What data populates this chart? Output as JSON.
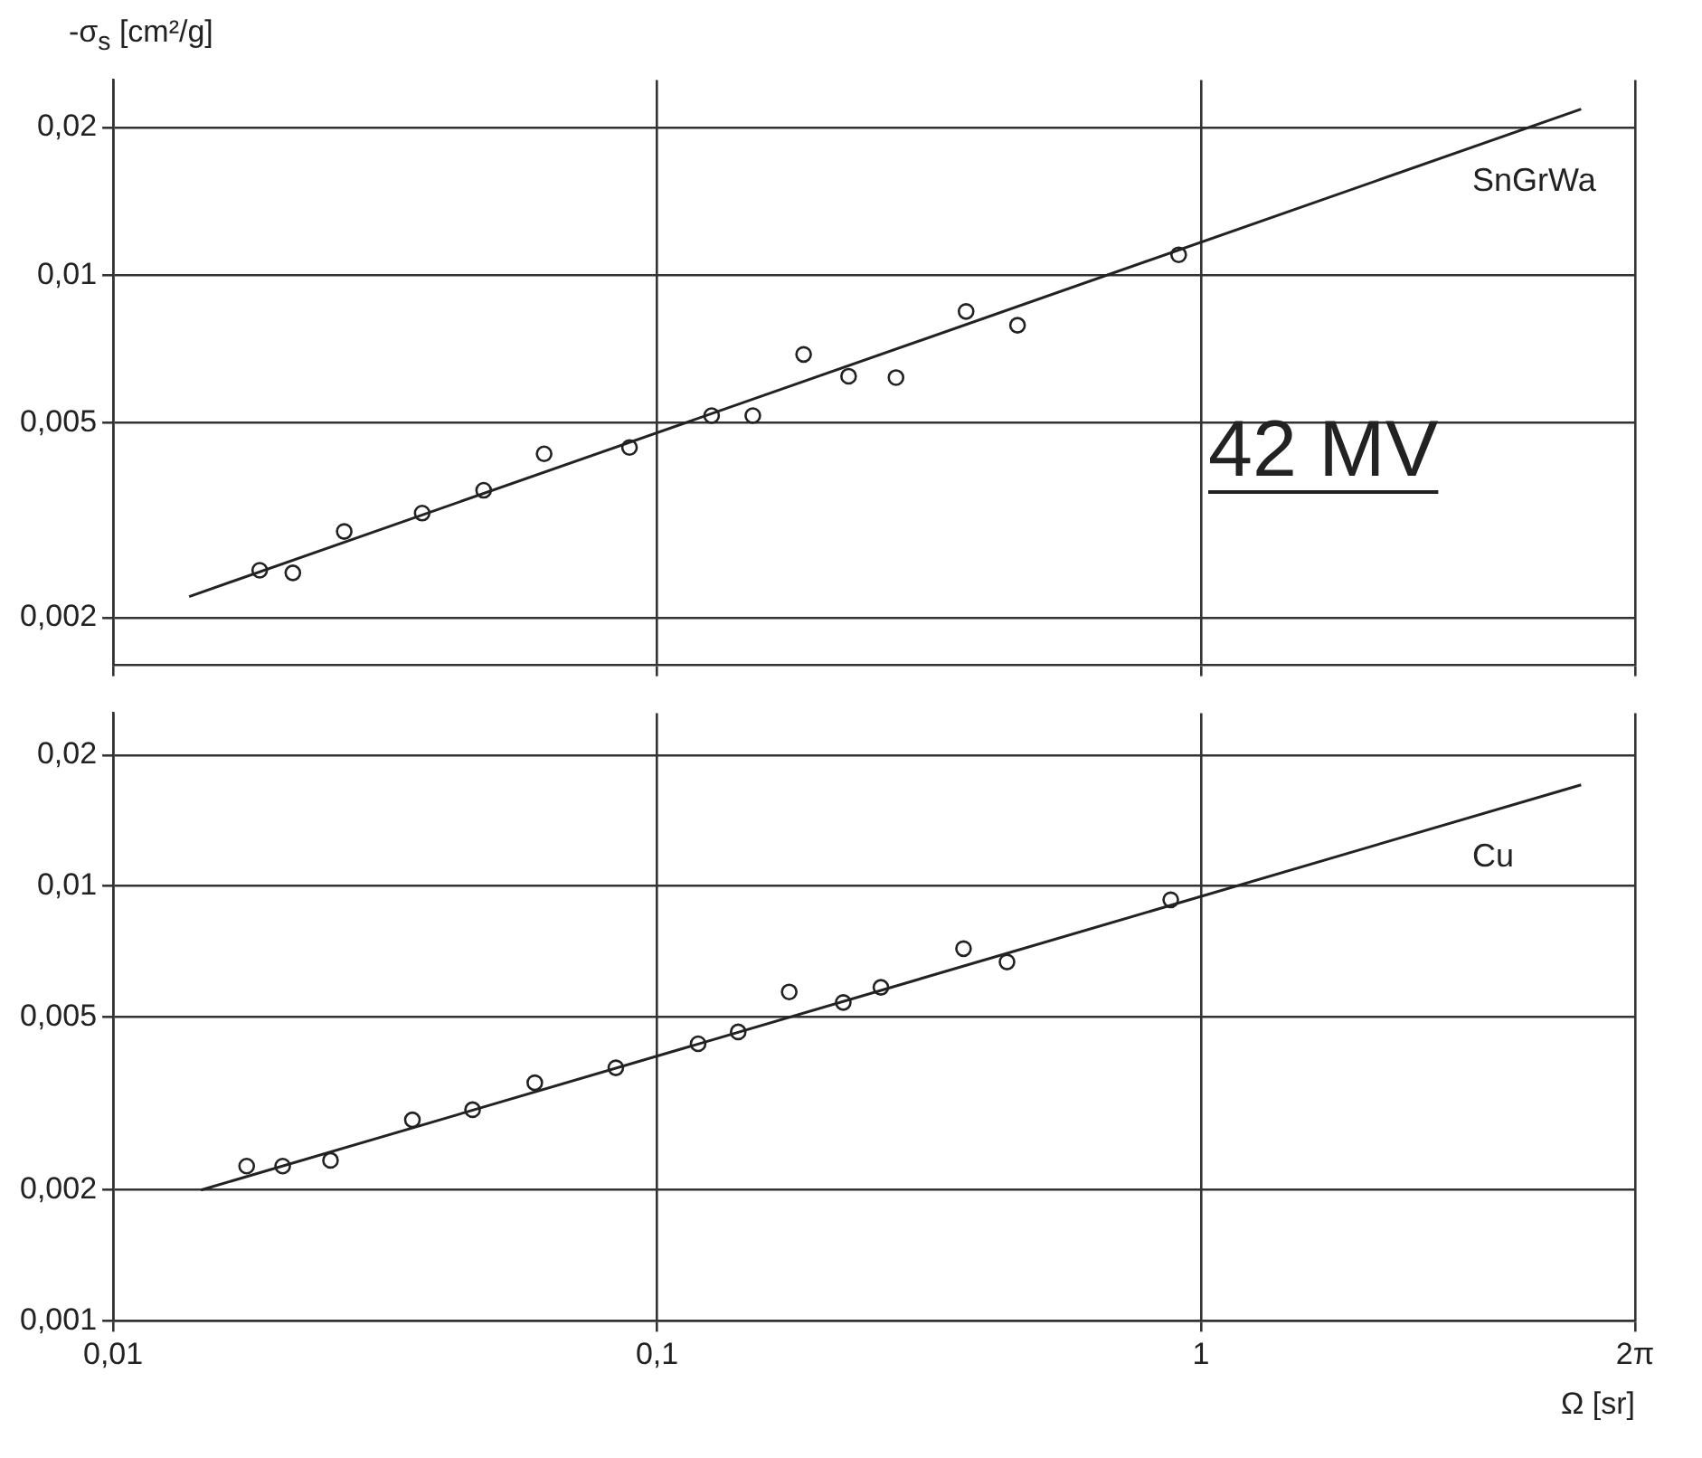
{
  "chart_data": [
    {
      "type": "scatter",
      "ylabel": "-σ$_{s}$ [cm²/g]",
      "annotations": [
        "42 MV"
      ],
      "log": "xy",
      "grid": true,
      "tick_labels": "y",
      "xlim": [
        0.01,
        6.283
      ],
      "xticks": [
        0.01,
        0.1,
        1,
        {
          "value": 6.283,
          "label": null
        }
      ],
      "ylim": [
        0.0016,
        0.025
      ],
      "yticks": [
        {
          "value": 0.002,
          "label": "0,002"
        },
        {
          "value": 0.005,
          "label": "0,005"
        },
        {
          "value": 0.01,
          "label": "0,01"
        },
        {
          "value": 0.02,
          "label": "0,02"
        }
      ],
      "series": [
        {
          "type": "scatter",
          "marker": "circle",
          "color": "#222222",
          "x": [
            0.0186,
            0.0214,
            0.0266,
            0.037,
            0.048,
            0.062,
            0.089,
            0.126,
            0.15,
            0.186,
            0.225,
            0.275,
            0.37,
            0.46,
            0.91
          ],
          "values": [
            0.0025,
            0.00247,
            0.003,
            0.00327,
            0.00364,
            0.00432,
            0.00445,
            0.00517,
            0.00517,
            0.00689,
            0.00622,
            0.00618,
            0.00843,
            0.0079,
            0.011
          ]
        },
        {
          "type": "line",
          "name": "SnGrWa",
          "marker": "none",
          "color": "#222222",
          "x": [
            0.0138,
            5
          ],
          "values": [
            0.00221,
            0.0218
          ]
        }
      ]
    },
    {
      "type": "scatter",
      "xlabel": "Ω [sr]",
      "log": "xy",
      "grid": true,
      "xlim": [
        0.01,
        6.283
      ],
      "xticks": [
        {
          "value": 0.01,
          "label": "0,01"
        },
        {
          "value": 0.1,
          "label": "0,1"
        },
        1,
        {
          "value": 6.283,
          "label": "2π"
        }
      ],
      "ylim": [
        0.001,
        0.025
      ],
      "yticks": [
        {
          "value": 0.001,
          "label": "0,001"
        },
        {
          "value": 0.002,
          "label": "0,002"
        },
        {
          "value": 0.005,
          "label": "0,005"
        },
        {
          "value": 0.01,
          "label": "0,01"
        },
        {
          "value": 0.02,
          "label": "0,02"
        }
      ],
      "series": [
        {
          "type": "scatter",
          "marker": "circle",
          "color": "#222222",
          "x": [
            0.0176,
            0.0205,
            0.0251,
            0.0355,
            0.0458,
            0.0596,
            0.084,
            0.119,
            0.141,
            0.175,
            0.22,
            0.258,
            0.366,
            0.44,
            0.88
          ],
          "values": [
            0.00227,
            0.00227,
            0.00234,
            0.0029,
            0.00306,
            0.00353,
            0.00382,
            0.00434,
            0.00462,
            0.00571,
            0.0054,
            0.00585,
            0.00718,
            0.00669,
            0.0093
          ]
        },
        {
          "type": "line",
          "name": "Cu",
          "marker": "none",
          "color": "#222222",
          "x": [
            0.0145,
            5
          ],
          "values": [
            0.002,
            0.0171
          ]
        }
      ]
    }
  ]
}
